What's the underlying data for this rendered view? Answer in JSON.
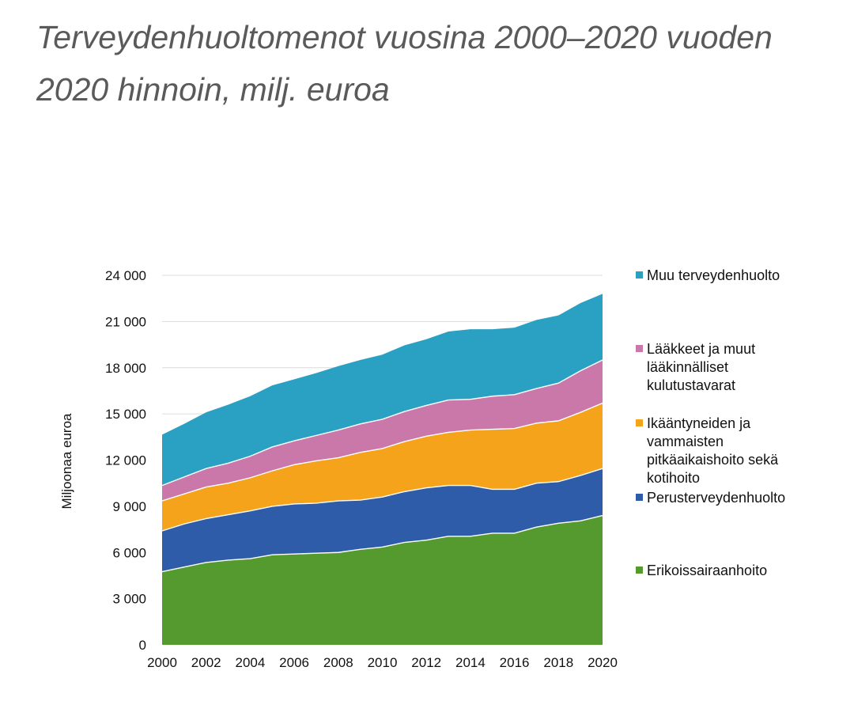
{
  "page": {
    "title": "Terveydenhuoltomenot vuosina 2000–2020 vuoden 2020 hinnoin, milj. euroa"
  },
  "chart_data": {
    "type": "area",
    "stacked": true,
    "ylabel": "Miljoonaa euroa",
    "xlabel": "",
    "ylim": [
      0,
      24000
    ],
    "yticks": [
      0,
      3000,
      6000,
      9000,
      12000,
      15000,
      18000,
      21000,
      24000
    ],
    "ytick_labels": [
      "0",
      "3 000",
      "6 000",
      "9 000",
      "12 000",
      "15 000",
      "18 000",
      "21 000",
      "24 000"
    ],
    "xticks": [
      2000,
      2002,
      2004,
      2006,
      2008,
      2010,
      2012,
      2014,
      2016,
      2018,
      2020
    ],
    "xtick_labels": [
      "2000",
      "2002",
      "2004",
      "2006",
      "2008",
      "2010",
      "2012",
      "2014",
      "2016",
      "2018",
      "2020"
    ],
    "grid": "horizontal",
    "legend_position": "right",
    "x": [
      2000,
      2001,
      2002,
      2003,
      2004,
      2005,
      2006,
      2007,
      2008,
      2009,
      2010,
      2011,
      2012,
      2013,
      2014,
      2015,
      2016,
      2017,
      2018,
      2019,
      2020
    ],
    "series": [
      {
        "name": "Erikoissairaanhoito",
        "color": "#559a2e",
        "values": [
          4750,
          5050,
          5350,
          5500,
          5600,
          5850,
          5900,
          5950,
          6000,
          6200,
          6350,
          6650,
          6800,
          7050,
          7050,
          7250,
          7250,
          7650,
          7900,
          8050,
          8400
        ]
      },
      {
        "name": "Perusterveydenhuolto",
        "color": "#2f5ca8",
        "values": [
          2650,
          2800,
          2850,
          2950,
          3100,
          3150,
          3250,
          3250,
          3350,
          3200,
          3250,
          3300,
          3400,
          3300,
          3300,
          2850,
          2850,
          2850,
          2700,
          2950,
          3050
        ]
      },
      {
        "name": "Ikääntyneiden ja vammaisten pitkäaikaishoito sekä kotihoito",
        "color": "#f5a31a",
        "values": [
          1950,
          1950,
          2050,
          2050,
          2150,
          2300,
          2550,
          2750,
          2800,
          3100,
          3150,
          3250,
          3350,
          3450,
          3600,
          3900,
          3950,
          3900,
          3950,
          4100,
          4250
        ]
      },
      {
        "name": "Lääkkeet ja muut lääkinnälliset kulutustavarat",
        "color": "#c978a9",
        "values": [
          1000,
          1100,
          1200,
          1300,
          1400,
          1550,
          1550,
          1650,
          1800,
          1850,
          1900,
          1950,
          2000,
          2100,
          2000,
          2150,
          2200,
          2250,
          2450,
          2700,
          2800
        ]
      },
      {
        "name": "Muu terveydenhuolto",
        "color": "#2aa1c3",
        "values": [
          3300,
          3450,
          3650,
          3800,
          3900,
          4000,
          4000,
          4050,
          4150,
          4150,
          4200,
          4300,
          4300,
          4450,
          4550,
          4350,
          4350,
          4450,
          4400,
          4400,
          4300
        ]
      }
    ]
  }
}
